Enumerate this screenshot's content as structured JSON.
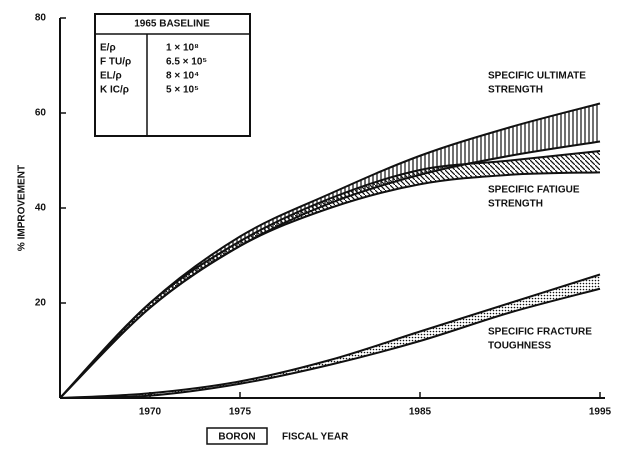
{
  "chart_data": {
    "type": "band",
    "y_label": "% IMPROVEMENT",
    "x_label": "FISCAL YEAR",
    "material": "BORON",
    "x": [
      1965,
      1970,
      1975,
      1980,
      1985,
      1990,
      1995
    ],
    "xlim": [
      1965,
      1995
    ],
    "xticks": [
      1970,
      1975,
      1985,
      1995
    ],
    "ylim": [
      0,
      80
    ],
    "yticks": [
      20,
      40,
      60,
      80
    ],
    "series": [
      {
        "name": [
          "SPECIFIC ULTIMATE",
          "STRENGTH"
        ],
        "pattern": "vertical",
        "upper": [
          0,
          20,
          34,
          43,
          51,
          57,
          62
        ],
        "lower": [
          0,
          19,
          32,
          41,
          47,
          51,
          54
        ]
      },
      {
        "name": [
          "SPECIFIC FATIGUE",
          "STRENGTH"
        ],
        "pattern": "diagonal",
        "upper": [
          0,
          20,
          33,
          42,
          48,
          50,
          52
        ],
        "lower": [
          0,
          19,
          32,
          40,
          45,
          47,
          47.5
        ]
      },
      {
        "name": [
          "SPECIFIC FRACTURE",
          "TOUGHNESS"
        ],
        "pattern": "dots",
        "upper": [
          0,
          1,
          3.5,
          8,
          14,
          20,
          26
        ],
        "lower": [
          0,
          0.5,
          3,
          7,
          12,
          18,
          23
        ]
      }
    ],
    "baseline": {
      "title": "1965 BASELINE",
      "rows": [
        [
          "E/ρ",
          "1 × 10⁸"
        ],
        [
          "F TU/ρ",
          "6.5 × 10⁵"
        ],
        [
          "EL/ρ",
          "8 × 10⁴"
        ],
        [
          "K IC/ρ",
          "5 × 10⁵"
        ]
      ]
    }
  }
}
